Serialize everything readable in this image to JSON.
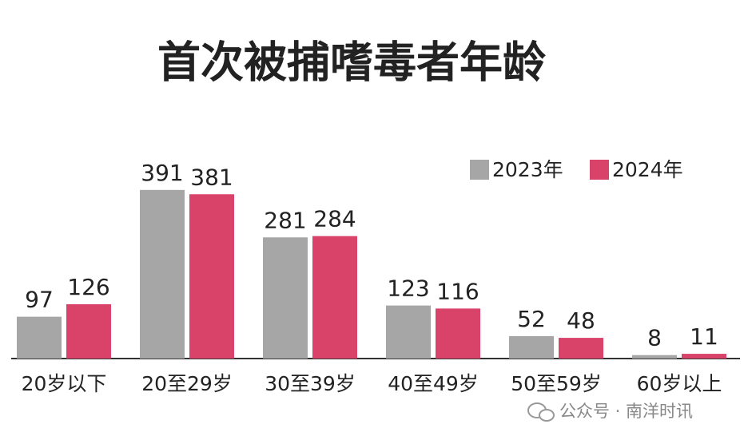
{
  "chart_data": {
    "type": "bar",
    "title": "首次被捕嗜毒者年龄",
    "categories": [
      "20岁以下",
      "20至29岁",
      "30至39岁",
      "40至49岁",
      "50至59岁",
      "60岁以上"
    ],
    "series": [
      {
        "name": "2023年",
        "color": "#a6a6a6",
        "values": [
          97,
          391,
          281,
          123,
          52,
          8
        ]
      },
      {
        "name": "2024年",
        "color": "#d9436a",
        "values": [
          126,
          381,
          284,
          116,
          48,
          11
        ]
      }
    ],
    "legend": "top-right"
  },
  "watermark": "公众号 · 南洋时讯"
}
